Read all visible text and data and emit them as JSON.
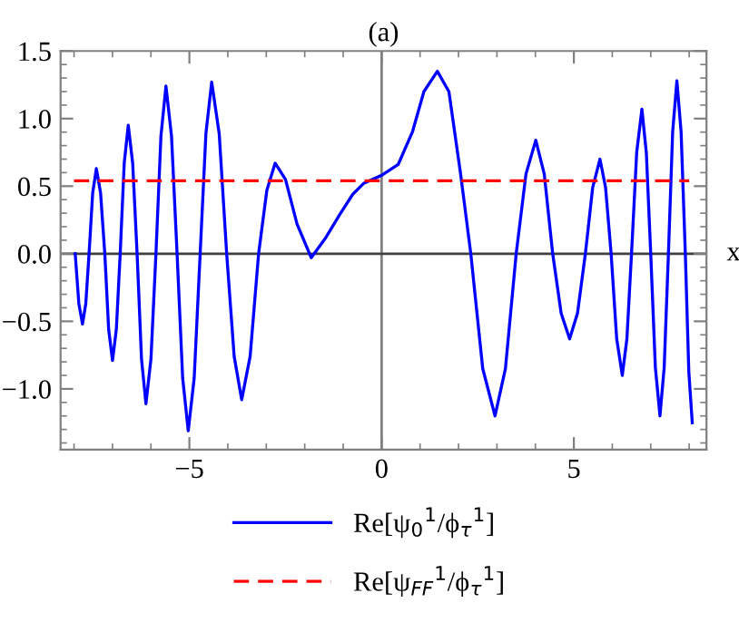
{
  "chart_data": {
    "type": "line",
    "title": "(a)",
    "xlabel": "x",
    "xlim": [
      -8.35,
      8.45
    ],
    "ylim": [
      -1.45,
      1.5
    ],
    "xticks": [
      {
        "value": -5,
        "label": "−5"
      },
      0,
      5
    ],
    "yticks": [
      {
        "value": -1.0,
        "label": "−1.0"
      },
      {
        "value": -0.5,
        "label": "−0.5"
      },
      {
        "value": 0.0,
        "label": "0.0"
      },
      {
        "value": 0.5,
        "label": "0.5"
      },
      {
        "value": 1.0,
        "label": "1.0"
      },
      {
        "value": 1.5,
        "label": "1.5"
      }
    ],
    "series": [
      {
        "name": "Re[ψ$_{0}$$^{1}$/ϕ$_{τ}$$^{1}$]",
        "color": "#0000ff",
        "line_style": "solid",
        "x": [
          -7.97,
          -7.875,
          -7.78,
          -7.695,
          -7.61,
          -7.515,
          -7.42,
          -7.31,
          -7.2,
          -7.1,
          -7.0,
          -6.9,
          -6.8,
          -6.695,
          -6.59,
          -6.475,
          -6.36,
          -6.245,
          -6.13,
          -6.0,
          -5.87,
          -5.74,
          -5.61,
          -5.465,
          -5.32,
          -5.175,
          -5.03,
          -4.875,
          -4.72,
          -4.57,
          -4.42,
          -4.225,
          -4.03,
          -3.835,
          -3.64,
          -3.42,
          -3.2,
          -2.985,
          -2.77,
          -2.5,
          -2.2,
          -1.83,
          -1.45,
          -1.09,
          -0.75,
          -0.47,
          0.0,
          0.43,
          0.8,
          1.1,
          1.45,
          1.75,
          2.05,
          2.32,
          2.63,
          2.95,
          3.22,
          3.5,
          3.755,
          4.01,
          4.23,
          4.45,
          4.67,
          4.89,
          5.095,
          5.3,
          5.49,
          5.68,
          5.825,
          5.97,
          6.115,
          6.26,
          6.38,
          6.5,
          6.635,
          6.77,
          6.885,
          7.0,
          7.12,
          7.24,
          7.35,
          7.46,
          7.57,
          7.68,
          7.79,
          7.9,
          7.99,
          8.08
        ],
        "values": [
          0.0,
          -0.37,
          -0.52,
          -0.37,
          0.0,
          0.45,
          0.63,
          0.45,
          0.0,
          -0.56,
          -0.79,
          -0.56,
          0.0,
          0.67,
          0.95,
          0.67,
          0.0,
          -0.78,
          -1.11,
          -0.78,
          0.0,
          0.87,
          1.24,
          0.87,
          0.0,
          -0.92,
          -1.31,
          -0.92,
          0.0,
          0.89,
          1.27,
          0.89,
          0.0,
          -0.76,
          -1.08,
          -0.76,
          0.0,
          0.47,
          0.67,
          0.55,
          0.22,
          -0.03,
          0.12,
          0.29,
          0.44,
          0.52,
          0.58,
          0.66,
          0.9,
          1.2,
          1.35,
          1.2,
          0.6,
          0.0,
          -0.85,
          -1.2,
          -0.85,
          0.0,
          0.59,
          0.84,
          0.59,
          0.0,
          -0.44,
          -0.63,
          -0.44,
          0.0,
          0.49,
          0.7,
          0.49,
          0.0,
          -0.63,
          -0.9,
          -0.63,
          0.0,
          0.75,
          1.07,
          0.75,
          0.0,
          -0.84,
          -1.2,
          -0.84,
          0.0,
          0.9,
          1.28,
          0.9,
          0.0,
          -0.87,
          -1.25
        ]
      },
      {
        "name": "Re[ψ$_{FF}$$^{1}$/ϕ$_{τ}$$^{1}$]",
        "color": "#ff0000",
        "line_style": "dashed",
        "x": [
          -8.0,
          8.0
        ],
        "values": [
          0.54,
          0.54
        ]
      }
    ],
    "ref_lines": [
      {
        "axis": "x",
        "value": 0,
        "color": "#808080"
      },
      {
        "axis": "y",
        "value": 0,
        "color": "#404040"
      }
    ],
    "legend": "bottom",
    "grid": false
  }
}
